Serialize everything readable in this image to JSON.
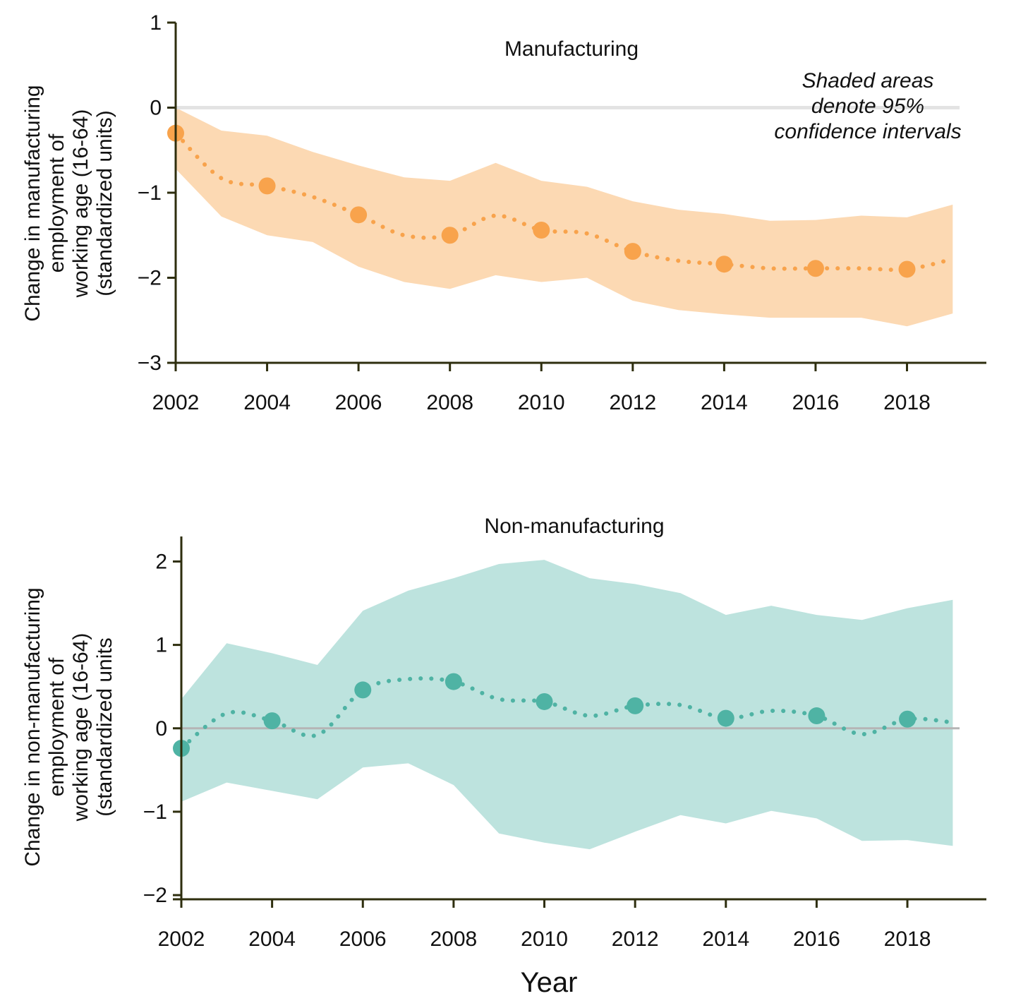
{
  "chart_data": [
    {
      "type": "line",
      "title": "Manufacturing",
      "ylabel": [
        "Change in manufacturing",
        "employment of",
        "working age (16-64)",
        "(standardized units)"
      ],
      "xlabel": "",
      "x_ticks": [
        2002,
        2004,
        2006,
        2008,
        2010,
        2012,
        2014,
        2016,
        2018
      ],
      "y_ticks": [
        1,
        0,
        -1,
        -2,
        -3
      ],
      "y_tick_labels": [
        "1",
        "0",
        "−1",
        "−2",
        "−3"
      ],
      "xlim": [
        2002,
        2019.4
      ],
      "ylim": [
        -3,
        1
      ],
      "annotation": [
        "Shaded areas",
        "denote 95%",
        "confidence intervals"
      ],
      "zero_line": true,
      "color": "#f8a34c",
      "band_color": "#fcd9b3",
      "series": [
        {
          "x": [
            2002,
            2003,
            2004,
            2005,
            2006,
            2007,
            2008,
            2009,
            2010,
            2011,
            2012,
            2013,
            2014,
            2015,
            2016,
            2017,
            2018,
            2019
          ],
          "y": [
            -0.3,
            -0.83,
            -0.92,
            -1.05,
            -1.26,
            -1.5,
            -1.5,
            -1.27,
            -1.44,
            -1.48,
            -1.69,
            -1.8,
            -1.84,
            -1.89,
            -1.89,
            -1.89,
            -1.9,
            -1.78
          ],
          "lower": [
            -0.72,
            -1.28,
            -1.5,
            -1.58,
            -1.87,
            -2.05,
            -2.13,
            -1.97,
            -2.05,
            -2.0,
            -2.27,
            -2.38,
            -2.43,
            -2.47,
            -2.47,
            -2.47,
            -2.57,
            -2.42
          ],
          "upper": [
            0.0,
            -0.27,
            -0.33,
            -0.52,
            -0.68,
            -0.82,
            -0.86,
            -0.65,
            -0.86,
            -0.93,
            -1.1,
            -1.2,
            -1.25,
            -1.33,
            -1.32,
            -1.27,
            -1.29,
            -1.14
          ],
          "markers_at": [
            2002,
            2004,
            2006,
            2008,
            2010,
            2012,
            2014,
            2016,
            2018
          ]
        }
      ]
    },
    {
      "type": "line",
      "title": "Non-manufacturing",
      "ylabel": [
        "Change in non-manufacturing",
        "employment of",
        "working age (16-64)",
        "(standardized units"
      ],
      "xlabel": "Year",
      "x_ticks": [
        2002,
        2004,
        2006,
        2008,
        2010,
        2012,
        2014,
        2016,
        2018
      ],
      "y_ticks": [
        2,
        1,
        0,
        -1,
        -2
      ],
      "y_tick_labels": [
        "2",
        "1",
        "0",
        "−1",
        "−2"
      ],
      "xlim": [
        2002,
        2019.4
      ],
      "ylim": [
        -2.05,
        2.3
      ],
      "zero_line": true,
      "color": "#4fb3a4",
      "band_color": "#bde3de",
      "series": [
        {
          "x": [
            2002,
            2003,
            2004,
            2005,
            2006,
            2007,
            2008,
            2009,
            2010,
            2011,
            2012,
            2013,
            2014,
            2015,
            2016,
            2017,
            2018,
            2019
          ],
          "y": [
            -0.24,
            0.18,
            0.09,
            -0.08,
            0.46,
            0.59,
            0.56,
            0.35,
            0.32,
            0.15,
            0.27,
            0.28,
            0.12,
            0.21,
            0.15,
            -0.07,
            0.11,
            0.07
          ],
          "lower": [
            -0.88,
            -0.65,
            -0.75,
            -0.85,
            -0.47,
            -0.42,
            -0.68,
            -1.26,
            -1.37,
            -1.45,
            -1.24,
            -1.04,
            -1.14,
            -0.99,
            -1.08,
            -1.35,
            -1.34,
            -1.41
          ],
          "upper": [
            0.35,
            1.02,
            0.9,
            0.76,
            1.41,
            1.65,
            1.8,
            1.97,
            2.02,
            1.8,
            1.73,
            1.62,
            1.36,
            1.47,
            1.36,
            1.3,
            1.44,
            1.54
          ],
          "markers_at": [
            2002,
            2004,
            2006,
            2008,
            2010,
            2012,
            2014,
            2016,
            2018
          ]
        }
      ]
    }
  ]
}
